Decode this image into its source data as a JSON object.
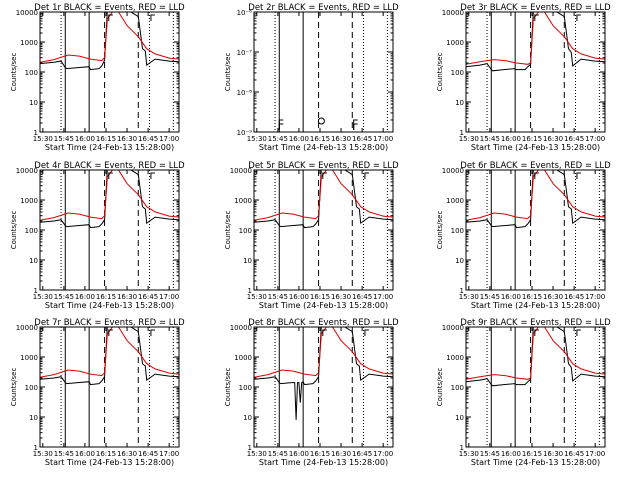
{
  "panel_titles": [
    "Det 1r BLACK = Events, RED = LLD",
    "Det 2r BLACK = Events, RED = LLD",
    "Det 3r BLACK = Events, RED = LLD",
    "Det 4r BLACK = Events, RED = LLD",
    "Det 5r BLACK = Events, RED = LLD",
    "Det 6r BLACK = Events, RED = LLD",
    "Det 7r BLACK = Events, RED = LLD",
    "Det 8r BLACK = Events, RED = LLD",
    "Det 9r BLACK = Events, RED = LLD"
  ],
  "xlabel": "Start Time (24-Feb-13 15:28:00)",
  "ylabel": "Counts/sec",
  "xticks": [
    "15:30",
    "15:45",
    "16:00",
    "16:15",
    "16:30",
    "16:45",
    "17:00"
  ],
  "yticks_standard": [
    "1",
    "10",
    "100",
    "1000",
    "10000"
  ],
  "yticks_det2": [
    "10⁻⁹",
    "10⁻⁸",
    "10⁻⁷",
    "10⁻⁶"
  ],
  "colors": {
    "events": "#000000",
    "lld": "#e00000"
  },
  "chart_data": [
    {
      "type": "line",
      "title": "Det 1r BLACK = Events, RED = LLD",
      "xlabel": "Start Time (24-Feb-13 15:28:00)",
      "ylabel": "Counts/sec",
      "xlim": [
        "15:28",
        "17:07"
      ],
      "ylim": [
        1,
        10000
      ],
      "yscale": "log",
      "series": [
        {
          "name": "Events",
          "x": [
            "15:28",
            "15:38",
            "15:43",
            "15:46",
            "15:47",
            "15:55",
            "16:03",
            "16:04",
            "16:10",
            "16:12",
            "16:14",
            "16:16",
            "16:20",
            "16:30",
            "16:38",
            "16:41",
            "16:43",
            "16:44",
            "16:50",
            "17:00",
            "17:07"
          ],
          "values": [
            190,
            210,
            230,
            140,
            130,
            140,
            150,
            120,
            130,
            160,
            250,
            12000,
            15000,
            12000,
            7000,
            600,
            500,
            170,
            270,
            230,
            220
          ]
        },
        {
          "name": "LLD",
          "x": [
            "15:28",
            "15:38",
            "15:48",
            "15:56",
            "16:04",
            "16:12",
            "16:14",
            "16:16",
            "16:22",
            "16:30",
            "16:38",
            "16:44",
            "16:50",
            "17:00",
            "17:07"
          ],
          "values": [
            210,
            260,
            370,
            340,
            270,
            240,
            300,
            6000,
            14000,
            3500,
            1500,
            600,
            400,
            290,
            270
          ]
        }
      ]
    },
    {
      "type": "line",
      "title": "Det 2r BLACK = Events, RED = LLD",
      "xlabel": "Start Time (24-Feb-13 15:28:00)",
      "ylabel": "Counts/sec",
      "xlim": [
        "15:28",
        "17:07"
      ],
      "ylim": [
        1e-09,
        1e-06
      ],
      "yscale": "log",
      "series": [
        {
          "name": "Events",
          "x": [
            "15:28",
            "15:46",
            "16:16",
            "16:39"
          ],
          "values": [
            0,
            0,
            0,
            0
          ]
        },
        {
          "name": "LLD",
          "x": [],
          "values": []
        }
      ]
    },
    {
      "type": "line",
      "title": "Det 3r BLACK = Events, RED = LLD",
      "xlabel": "Start Time (24-Feb-13 15:28:00)",
      "ylabel": "Counts/sec",
      "xlim": [
        "15:28",
        "17:07"
      ],
      "ylim": [
        1,
        10000
      ],
      "yscale": "log",
      "series": [
        {
          "name": "Events",
          "x": [
            "15:28",
            "15:38",
            "15:43",
            "15:46",
            "15:47",
            "15:55",
            "16:03",
            "16:04",
            "16:10",
            "16:12",
            "16:14",
            "16:16",
            "16:20",
            "16:30",
            "16:38",
            "16:41",
            "16:43",
            "16:44",
            "16:50",
            "17:00",
            "17:07"
          ],
          "values": [
            150,
            170,
            190,
            120,
            110,
            120,
            130,
            120,
            120,
            150,
            180,
            12000,
            15000,
            12000,
            7000,
            600,
            450,
            160,
            270,
            230,
            220
          ]
        },
        {
          "name": "LLD",
          "x": [
            "15:28",
            "15:38",
            "15:48",
            "15:56",
            "16:04",
            "16:12",
            "16:14",
            "16:16",
            "16:22",
            "16:30",
            "16:38",
            "16:44",
            "16:50",
            "17:00",
            "17:07"
          ],
          "values": [
            180,
            220,
            260,
            240,
            200,
            180,
            200,
            6000,
            14000,
            3500,
            1500,
            600,
            400,
            290,
            270
          ]
        }
      ]
    },
    {
      "type": "line",
      "title": "Det 4r BLACK = Events, RED = LLD",
      "xlabel": "Start Time (24-Feb-13 15:28:00)",
      "ylabel": "Counts/sec",
      "xlim": [
        "15:28",
        "17:07"
      ],
      "ylim": [
        1,
        10000
      ],
      "yscale": "log",
      "series": [
        {
          "name": "Events",
          "x": [
            "15:28",
            "15:38",
            "15:43",
            "15:46",
            "15:47",
            "15:55",
            "16:03",
            "16:04",
            "16:10",
            "16:12",
            "16:14",
            "16:16",
            "16:20",
            "16:30",
            "16:38",
            "16:41",
            "16:43",
            "16:44",
            "16:50",
            "17:00",
            "17:07"
          ],
          "values": [
            180,
            200,
            220,
            140,
            130,
            140,
            150,
            120,
            130,
            160,
            220,
            12000,
            15000,
            12000,
            7000,
            600,
            500,
            170,
            270,
            230,
            220
          ]
        },
        {
          "name": "LLD",
          "x": [
            "15:28",
            "15:38",
            "15:48",
            "15:56",
            "16:04",
            "16:12",
            "16:14",
            "16:16",
            "16:22",
            "16:30",
            "16:38",
            "16:44",
            "16:50",
            "17:00",
            "17:07"
          ],
          "values": [
            210,
            260,
            370,
            340,
            270,
            240,
            300,
            6000,
            14000,
            3500,
            1500,
            600,
            400,
            290,
            270
          ]
        }
      ]
    },
    {
      "type": "line",
      "title": "Det 5r BLACK = Events, RED = LLD",
      "xlabel": "Start Time (24-Feb-13 15:28:00)",
      "ylabel": "Counts/sec",
      "xlim": [
        "15:28",
        "17:07"
      ],
      "ylim": [
        1,
        10000
      ],
      "yscale": "log",
      "series": [
        {
          "name": "Events",
          "x": [
            "15:28",
            "15:38",
            "15:43",
            "15:46",
            "15:47",
            "15:55",
            "16:03",
            "16:04",
            "16:10",
            "16:12",
            "16:14",
            "16:16",
            "16:20",
            "16:30",
            "16:38",
            "16:41",
            "16:43",
            "16:44",
            "16:50",
            "17:00",
            "17:07"
          ],
          "values": [
            180,
            200,
            220,
            140,
            130,
            140,
            150,
            120,
            130,
            160,
            220,
            12000,
            15000,
            12000,
            7000,
            600,
            500,
            170,
            270,
            230,
            220
          ]
        },
        {
          "name": "LLD",
          "x": [
            "15:28",
            "15:38",
            "15:48",
            "15:56",
            "16:04",
            "16:12",
            "16:14",
            "16:16",
            "16:22",
            "16:30",
            "16:38",
            "16:44",
            "16:50",
            "17:00",
            "17:07"
          ],
          "values": [
            210,
            260,
            370,
            340,
            270,
            240,
            300,
            6000,
            14000,
            3500,
            1500,
            600,
            400,
            290,
            270
          ]
        }
      ]
    },
    {
      "type": "line",
      "title": "Det 6r BLACK = Events, RED = LLD",
      "xlabel": "Start Time (24-Feb-13 15:28:00)",
      "ylabel": "Counts/sec",
      "xlim": [
        "15:28",
        "17:07"
      ],
      "ylim": [
        1,
        10000
      ],
      "yscale": "log",
      "series": [
        {
          "name": "Events",
          "x": [
            "15:28",
            "15:38",
            "15:43",
            "15:46",
            "15:47",
            "15:55",
            "16:03",
            "16:04",
            "16:10",
            "16:12",
            "16:14",
            "16:16",
            "16:20",
            "16:30",
            "16:38",
            "16:41",
            "16:43",
            "16:44",
            "16:50",
            "17:00",
            "17:07"
          ],
          "values": [
            180,
            200,
            220,
            140,
            130,
            140,
            150,
            120,
            130,
            160,
            220,
            12000,
            15000,
            12000,
            7000,
            600,
            500,
            170,
            270,
            230,
            220
          ]
        },
        {
          "name": "LLD",
          "x": [
            "15:28",
            "15:38",
            "15:48",
            "15:56",
            "16:04",
            "16:12",
            "16:14",
            "16:16",
            "16:22",
            "16:30",
            "16:38",
            "16:44",
            "16:50",
            "17:00",
            "17:07"
          ],
          "values": [
            210,
            260,
            370,
            340,
            270,
            240,
            300,
            6000,
            14000,
            3500,
            1500,
            600,
            400,
            290,
            270
          ]
        }
      ]
    },
    {
      "type": "line",
      "title": "Det 7r BLACK = Events, RED = LLD",
      "xlabel": "Start Time (24-Feb-13 15:28:00)",
      "ylabel": "Counts/sec",
      "xlim": [
        "15:28",
        "17:07"
      ],
      "ylim": [
        1,
        10000
      ],
      "yscale": "log",
      "series": [
        {
          "name": "Events",
          "x": [
            "15:28",
            "15:38",
            "15:43",
            "15:46",
            "15:47",
            "15:55",
            "16:03",
            "16:04",
            "16:10",
            "16:12",
            "16:14",
            "16:16",
            "16:20",
            "16:30",
            "16:38",
            "16:41",
            "16:43",
            "16:44",
            "16:50",
            "17:00",
            "17:07"
          ],
          "values": [
            180,
            200,
            220,
            140,
            130,
            140,
            150,
            120,
            130,
            160,
            220,
            12000,
            15000,
            12000,
            7000,
            600,
            500,
            170,
            270,
            230,
            220
          ]
        },
        {
          "name": "LLD",
          "x": [
            "15:28",
            "15:38",
            "15:48",
            "15:56",
            "16:04",
            "16:12",
            "16:14",
            "16:16",
            "16:22",
            "16:30",
            "16:38",
            "16:44",
            "16:50",
            "17:00",
            "17:07"
          ],
          "values": [
            210,
            260,
            370,
            340,
            270,
            240,
            300,
            6000,
            14000,
            3500,
            1500,
            600,
            400,
            290,
            270
          ]
        }
      ]
    },
    {
      "type": "line",
      "title": "Det 8r BLACK = Events, RED = LLD",
      "xlabel": "Start Time (24-Feb-13 15:28:00)",
      "ylabel": "Counts/sec",
      "xlim": [
        "15:28",
        "17:07"
      ],
      "ylim": [
        1,
        10000
      ],
      "yscale": "log",
      "series": [
        {
          "name": "Events",
          "x": [
            "15:28",
            "15:38",
            "15:43",
            "15:46",
            "15:47",
            "15:55",
            "15:57",
            "15:58",
            "15:59",
            "16:00",
            "16:01",
            "16:02",
            "16:03",
            "16:04",
            "16:10",
            "16:12",
            "16:14",
            "16:16",
            "16:20",
            "16:30",
            "16:38",
            "16:41",
            "16:43",
            "16:44",
            "16:50",
            "17:00",
            "17:07"
          ],
          "values": [
            180,
            200,
            220,
            140,
            130,
            140,
            140,
            8,
            140,
            140,
            30,
            140,
            150,
            120,
            130,
            160,
            220,
            12000,
            15000,
            12000,
            7000,
            600,
            500,
            170,
            270,
            230,
            220
          ]
        },
        {
          "name": "LLD",
          "x": [
            "15:28",
            "15:38",
            "15:48",
            "15:56",
            "16:04",
            "16:12",
            "16:14",
            "16:16",
            "16:22",
            "16:30",
            "16:38",
            "16:44",
            "16:50",
            "17:00",
            "17:07"
          ],
          "values": [
            210,
            260,
            370,
            340,
            270,
            240,
            300,
            6000,
            14000,
            3500,
            1500,
            600,
            400,
            290,
            270
          ]
        }
      ]
    },
    {
      "type": "line",
      "title": "Det 9r BLACK = Events, RED = LLD",
      "xlabel": "Start Time (24-Feb-13 15:28:00)",
      "ylabel": "Counts/sec",
      "xlim": [
        "15:28",
        "17:07"
      ],
      "ylim": [
        1,
        10000
      ],
      "yscale": "log",
      "series": [
        {
          "name": "Events",
          "x": [
            "15:28",
            "15:38",
            "15:43",
            "15:46",
            "15:47",
            "15:55",
            "16:03",
            "16:04",
            "16:10",
            "16:12",
            "16:14",
            "16:16",
            "16:20",
            "16:30",
            "16:38",
            "16:41",
            "16:43",
            "16:44",
            "16:50",
            "17:00",
            "17:07"
          ],
          "values": [
            150,
            170,
            190,
            120,
            110,
            120,
            130,
            120,
            120,
            150,
            180,
            12000,
            15000,
            12000,
            7000,
            600,
            450,
            160,
            270,
            230,
            220
          ]
        },
        {
          "name": "LLD",
          "x": [
            "15:28",
            "15:38",
            "15:48",
            "15:56",
            "16:04",
            "16:12",
            "16:14",
            "16:16",
            "16:22",
            "16:30",
            "16:38",
            "16:44",
            "16:50",
            "17:00",
            "17:07"
          ],
          "values": [
            180,
            220,
            260,
            240,
            200,
            180,
            200,
            6000,
            14000,
            3500,
            1500,
            600,
            400,
            290,
            270
          ]
        }
      ]
    }
  ]
}
